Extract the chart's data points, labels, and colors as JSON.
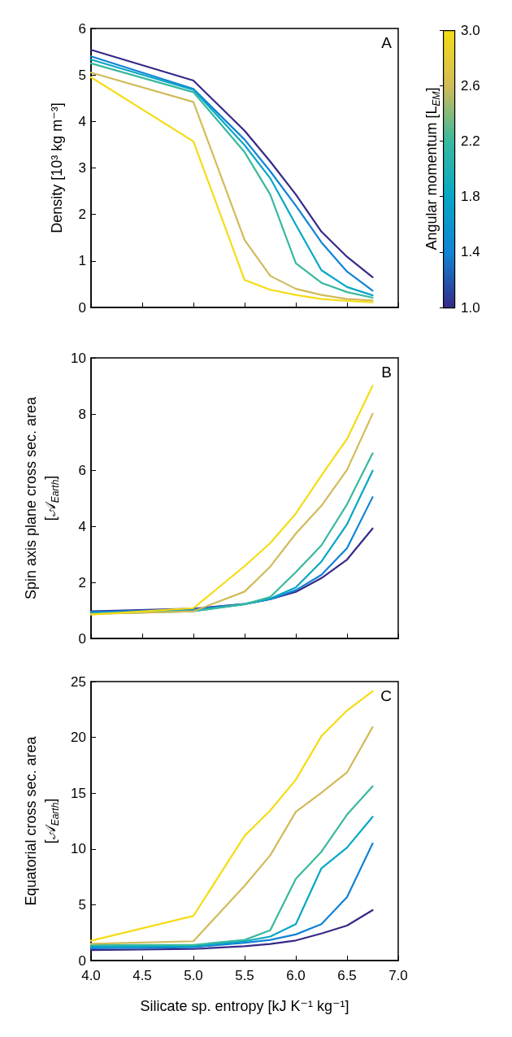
{
  "chart_data": [
    {
      "type": "line",
      "ylabel": "Density [10³ kg m⁻³]",
      "clabel": "Angular momentum [L$_{EM}$]",
      "annotations": [
        "A"
      ],
      "x": [
        4.0,
        5.0,
        5.5,
        5.75,
        6.0,
        6.25,
        6.5,
        6.75
      ],
      "xlim": [
        4.0,
        7.0
      ],
      "xticks": [
        4,
        4.5,
        5,
        5.5,
        6,
        6.5,
        7
      ],
      "ylim": [
        0,
        6
      ],
      "yticks": [
        0,
        1,
        2,
        3,
        4,
        5,
        6
      ],
      "clim": [
        1.0,
        3.0
      ],
      "cticks": [
        {
          "value": 1,
          "label": "1.0"
        },
        {
          "value": 1.4,
          "label": "1.4"
        },
        {
          "value": 1.8,
          "label": "1.8"
        },
        {
          "value": 2.2,
          "label": "2.2"
        },
        {
          "value": 2.6,
          "label": "2.6"
        },
        {
          "value": 3,
          "label": "3.0"
        }
      ],
      "tick_labels": "y",
      "grid": false,
      "marker": "none",
      "line_style": "solid",
      "series": [
        {
          "color": "#352a87",
          "values": [
            5.54,
            4.88,
            3.8,
            3.14,
            2.43,
            1.63,
            1.09,
            0.65
          ]
        },
        {
          "color": "#1283d4",
          "values": [
            5.4,
            4.7,
            3.61,
            2.93,
            2.19,
            1.4,
            0.77,
            0.36
          ]
        },
        {
          "color": "#06a7c6",
          "values": [
            5.33,
            4.68,
            3.49,
            2.78,
            1.78,
            0.8,
            0.44,
            0.26
          ]
        },
        {
          "color": "#38b99e",
          "values": [
            5.25,
            4.63,
            3.34,
            2.43,
            0.95,
            0.53,
            0.33,
            0.21
          ]
        },
        {
          "color": "#d1bb59",
          "values": [
            5.05,
            4.42,
            1.45,
            0.68,
            0.4,
            0.27,
            0.18,
            0.15
          ]
        },
        {
          "color": "#f5dc14",
          "values": [
            4.95,
            3.57,
            0.59,
            0.38,
            0.27,
            0.18,
            0.14,
            0.11
          ]
        }
      ]
    },
    {
      "type": "line",
      "ylabel": "Spin axis plane cross sec. area\n[𝒜$_{Earth}$]",
      "annotations": [
        "B"
      ],
      "x": [
        4.0,
        5.0,
        5.5,
        5.75,
        6.0,
        6.25,
        6.5,
        6.75
      ],
      "xlim": [
        4.0,
        7.0
      ],
      "xticks": [
        4,
        4.5,
        5,
        5.5,
        6,
        6.5,
        7
      ],
      "ylim": [
        0,
        10
      ],
      "yticks": [
        0,
        2,
        4,
        6,
        8,
        10
      ],
      "tick_labels": "y",
      "grid": false,
      "marker": "none",
      "line_style": "solid",
      "series": [
        {
          "color": "#352a87",
          "values": [
            0.97,
            1.06,
            1.23,
            1.4,
            1.66,
            2.15,
            2.81,
            3.92
          ]
        },
        {
          "color": "#1283d4",
          "values": [
            0.95,
            1.03,
            1.23,
            1.4,
            1.72,
            2.27,
            3.22,
            5.04
          ]
        },
        {
          "color": "#06a7c6",
          "values": [
            0.9,
            0.98,
            1.22,
            1.42,
            1.82,
            2.74,
            4.07,
            5.98
          ]
        },
        {
          "color": "#38b99e",
          "values": [
            0.88,
            0.97,
            1.22,
            1.48,
            2.36,
            3.32,
            4.78,
            6.6
          ]
        },
        {
          "color": "#d1bb59",
          "values": [
            0.87,
            0.97,
            1.67,
            2.56,
            3.74,
            4.73,
            6.01,
            8.01
          ]
        },
        {
          "color": "#f5dc14",
          "values": [
            0.85,
            1.08,
            2.58,
            3.4,
            4.45,
            5.81,
            7.11,
            9.01
          ]
        }
      ]
    },
    {
      "type": "line",
      "ylabel": "Equatorial cross sec. area\n[𝒜$_{Earth}$]",
      "xlabel": "Silicate sp. entropy [kJ K⁻¹ kg⁻¹]",
      "annotations": [
        "C"
      ],
      "x": [
        4.0,
        5.0,
        5.5,
        5.75,
        6.0,
        6.25,
        6.5,
        6.75
      ],
      "xlim": [
        4.0,
        7.0
      ],
      "xticks": [
        {
          "value": 4,
          "label": "4.0"
        },
        {
          "value": 4.5,
          "label": "4.5"
        },
        {
          "value": 5,
          "label": "5.0"
        },
        {
          "value": 5.5,
          "label": "5.5"
        },
        {
          "value": 6,
          "label": "6.0"
        },
        {
          "value": 6.5,
          "label": "6.5"
        },
        {
          "value": 7,
          "label": "7.0"
        }
      ],
      "ylim": [
        0,
        25
      ],
      "yticks": [
        0,
        5,
        10,
        15,
        20,
        25
      ],
      "grid": false,
      "marker": "none",
      "line_style": "solid",
      "series": [
        {
          "color": "#352a87",
          "values": [
            0.94,
            1.04,
            1.28,
            1.48,
            1.8,
            2.42,
            3.13,
            4.52
          ]
        },
        {
          "color": "#1283d4",
          "values": [
            1.1,
            1.2,
            1.6,
            1.85,
            2.34,
            3.26,
            5.68,
            10.49
          ]
        },
        {
          "color": "#06a7c6",
          "values": [
            1.25,
            1.3,
            1.73,
            2.15,
            3.26,
            8.27,
            10.12,
            12.88
          ]
        },
        {
          "color": "#38b99e",
          "values": [
            1.4,
            1.4,
            1.85,
            2.71,
            7.33,
            9.75,
            13.08,
            15.62
          ]
        },
        {
          "color": "#d1bb59",
          "values": [
            1.5,
            1.73,
            6.71,
            9.43,
            13.33,
            15.05,
            16.86,
            20.93
          ]
        },
        {
          "color": "#f5dc14",
          "values": [
            1.78,
            4.0,
            11.18,
            13.45,
            16.21,
            20.11,
            22.41,
            24.14
          ]
        }
      ]
    }
  ]
}
